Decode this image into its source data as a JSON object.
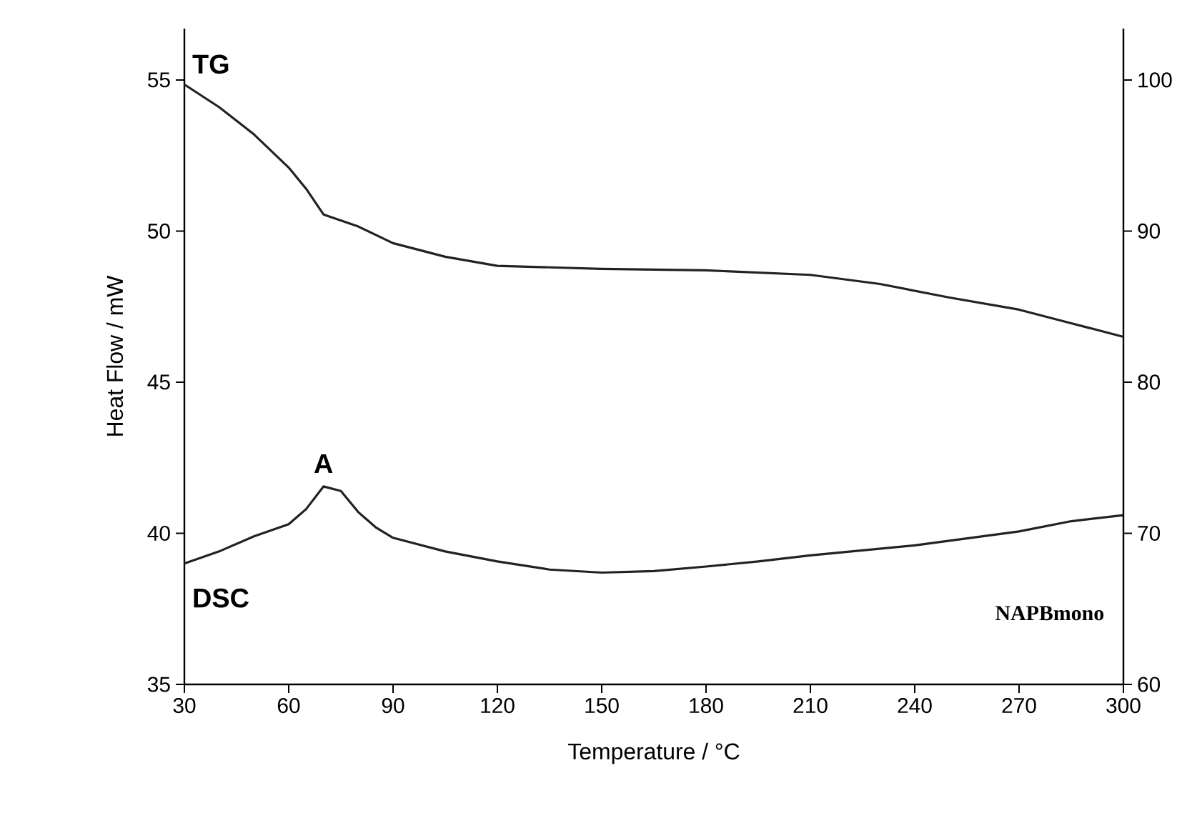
{
  "chart_data": {
    "type": "line",
    "xlabel": "Temperature / °C",
    "ylabel": "Heat Flow / mW",
    "xlim": [
      30,
      300
    ],
    "xticks": [
      30,
      60,
      90,
      120,
      150,
      180,
      210,
      240,
      270,
      300
    ],
    "ylim": [
      35,
      56.7
    ],
    "yticks": [
      35,
      40,
      45,
      50,
      55
    ],
    "y2lim": [
      60,
      103.4
    ],
    "y2ticks": [
      60,
      70,
      80,
      90,
      100
    ],
    "grid": false,
    "marker": "none",
    "line_style": "solid",
    "series": [
      {
        "name": "TG",
        "color": "#222222",
        "axis": "y2",
        "x": [
          30,
          40,
          50,
          60,
          65,
          70,
          80,
          90,
          105,
          120,
          150,
          180,
          210,
          230,
          250,
          270,
          285,
          300
        ],
        "values": [
          99.7,
          98.2,
          96.4,
          94.2,
          92.8,
          91.1,
          90.3,
          89.2,
          88.3,
          87.7,
          87.5,
          87.4,
          87.1,
          86.5,
          85.6,
          84.8,
          83.9,
          83.0
        ]
      },
      {
        "name": "DSC",
        "color": "#222222",
        "axis": "y",
        "x": [
          30,
          40,
          50,
          60,
          65,
          70,
          75,
          80,
          85,
          90,
          105,
          120,
          135,
          150,
          165,
          180,
          195,
          210,
          240,
          270,
          285,
          300
        ],
        "values": [
          39.0,
          39.4,
          39.9,
          40.3,
          40.8,
          41.55,
          41.4,
          40.7,
          40.2,
          39.85,
          39.4,
          39.07,
          38.8,
          38.7,
          38.75,
          38.9,
          39.07,
          39.27,
          39.6,
          40.06,
          40.4,
          40.6
        ]
      }
    ],
    "annotations": [
      {
        "text": "A",
        "x": 70,
        "y": 41.55
      },
      "NAPBmono"
    ]
  }
}
